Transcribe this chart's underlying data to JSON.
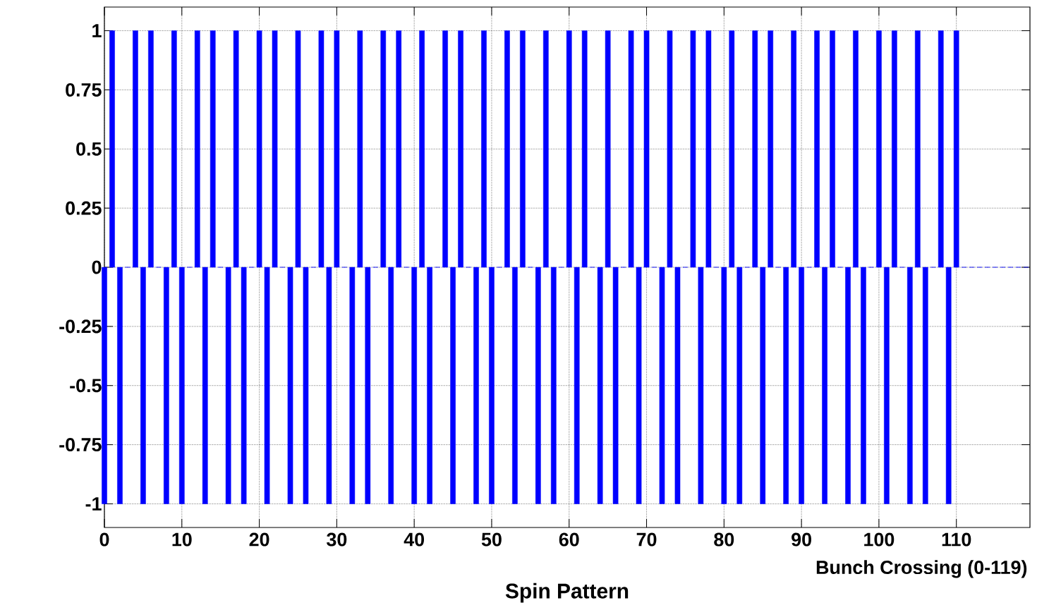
{
  "chart_data": {
    "type": "bar",
    "title": "Spin Pattern",
    "xlabel": "Bunch Crossing (0-119)",
    "x": [
      0,
      1,
      2,
      3,
      4,
      5,
      6,
      7,
      8,
      9,
      10,
      11,
      12,
      13,
      14,
      15,
      16,
      17,
      18,
      19,
      20,
      21,
      22,
      23,
      24,
      25,
      26,
      27,
      28,
      29,
      30,
      31,
      32,
      33,
      34,
      35,
      36,
      37,
      38,
      39,
      40,
      41,
      42,
      43,
      44,
      45,
      46,
      47,
      48,
      49,
      50,
      51,
      52,
      53,
      54,
      55,
      56,
      57,
      58,
      59,
      60,
      61,
      62,
      63,
      64,
      65,
      66,
      67,
      68,
      69,
      70,
      71,
      72,
      73,
      74,
      75,
      76,
      77,
      78,
      79,
      80,
      81,
      82,
      83,
      84,
      85,
      86,
      87,
      88,
      89,
      90,
      91,
      92,
      93,
      94,
      95,
      96,
      97,
      98,
      99,
      100,
      101,
      102,
      103,
      104,
      105,
      106,
      107,
      108,
      109,
      110,
      111,
      112,
      113,
      114,
      115,
      116,
      117,
      118,
      119
    ],
    "values": [
      -1,
      1,
      -1,
      0,
      1,
      -1,
      1,
      0,
      -1,
      1,
      -1,
      0,
      1,
      -1,
      1,
      0,
      -1,
      1,
      -1,
      0,
      1,
      -1,
      1,
      0,
      -1,
      1,
      -1,
      0,
      1,
      -1,
      1,
      0,
      -1,
      1,
      -1,
      0,
      1,
      -1,
      1,
      0,
      -1,
      1,
      -1,
      0,
      1,
      -1,
      1,
      0,
      -1,
      1,
      -1,
      0,
      1,
      -1,
      1,
      0,
      -1,
      1,
      -1,
      0,
      1,
      -1,
      1,
      0,
      -1,
      1,
      -1,
      0,
      1,
      -1,
      1,
      0,
      -1,
      1,
      -1,
      0,
      1,
      -1,
      1,
      0,
      -1,
      1,
      -1,
      0,
      1,
      -1,
      1,
      0,
      -1,
      1,
      -1,
      0,
      1,
      -1,
      1,
      0,
      -1,
      1,
      -1,
      0,
      1,
      -1,
      1,
      0,
      -1,
      1,
      -1,
      0,
      1,
      -1,
      1,
      0,
      0,
      0,
      0,
      0,
      0,
      0,
      0,
      0
    ],
    "color": "#0000ff",
    "xlim": [
      0,
      119.5
    ],
    "xticks": [
      0,
      10,
      20,
      30,
      40,
      50,
      60,
      70,
      80,
      90,
      100,
      110
    ],
    "ylim": [
      -1.1,
      1.1
    ],
    "yticks": [
      -1,
      -0.75,
      -0.5,
      -0.25,
      0,
      0.25,
      0.5,
      0.75,
      1
    ],
    "grid": true
  }
}
